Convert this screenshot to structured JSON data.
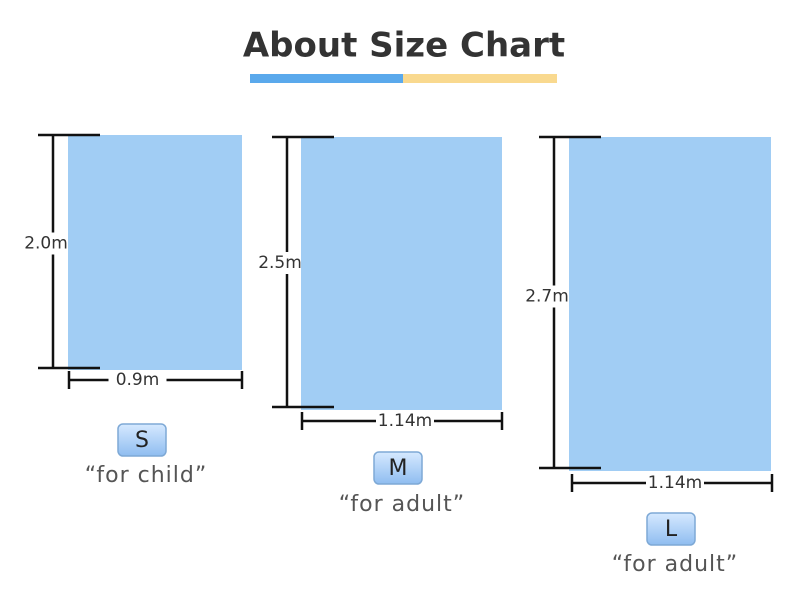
{
  "title": "About Size Chart",
  "sizes": [
    {
      "label": "S",
      "note": "“for child”",
      "height": "2.0m",
      "width": "0.9m"
    },
    {
      "label": "M",
      "note": "“for adult”",
      "height": "2.5m",
      "width": "1.14m"
    },
    {
      "label": "L",
      "note": "“for adult”",
      "height": "2.7m",
      "width": "1.14m"
    }
  ]
}
